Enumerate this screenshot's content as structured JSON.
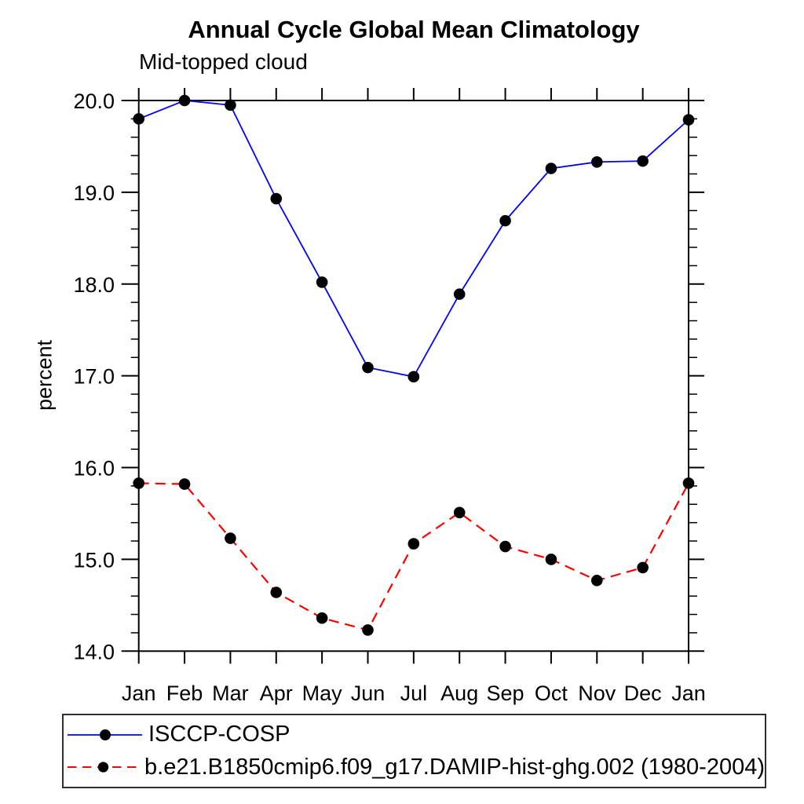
{
  "chart_data": {
    "type": "line",
    "title": "Annual Cycle Global Mean Climatology",
    "subtitle": "Mid-topped cloud",
    "ylabel": "percent",
    "xlabel": "",
    "categories": [
      "Jan",
      "Feb",
      "Mar",
      "Apr",
      "May",
      "Jun",
      "Jul",
      "Aug",
      "Sep",
      "Oct",
      "Nov",
      "Dec",
      "Jan"
    ],
    "series": [
      {
        "name": "ISCCP-COSP",
        "color": "#0000ff",
        "line_style": "solid",
        "marker": "filled-circle",
        "marker_color": "#000000",
        "values": [
          19.8,
          20.0,
          19.95,
          18.93,
          18.02,
          17.09,
          16.99,
          17.89,
          18.69,
          19.26,
          19.33,
          19.34,
          19.79
        ]
      },
      {
        "name": "b.e21.B1850cmip6.f09_g17.DAMIP-hist-ghg.002 (1980-2004)",
        "color": "#ff0000",
        "line_style": "dashed",
        "marker": "filled-circle",
        "marker_color": "#000000",
        "values": [
          15.83,
          15.82,
          15.23,
          14.64,
          14.36,
          14.23,
          15.17,
          15.51,
          15.14,
          15.0,
          14.77,
          14.91,
          15.83
        ]
      }
    ],
    "ylim": [
      14.0,
      20.0
    ],
    "y_major_tick_step": 1.0,
    "y_minor_tick_step": 0.2,
    "y_tick_labels": [
      "14.0",
      "15.0",
      "16.0",
      "17.0",
      "18.0",
      "19.0",
      "20.0"
    ],
    "grid": "off",
    "legend_position": "bottom-left-box",
    "axis_color": "#000000",
    "text_color": "#000000",
    "background_color": "#ffffff"
  }
}
